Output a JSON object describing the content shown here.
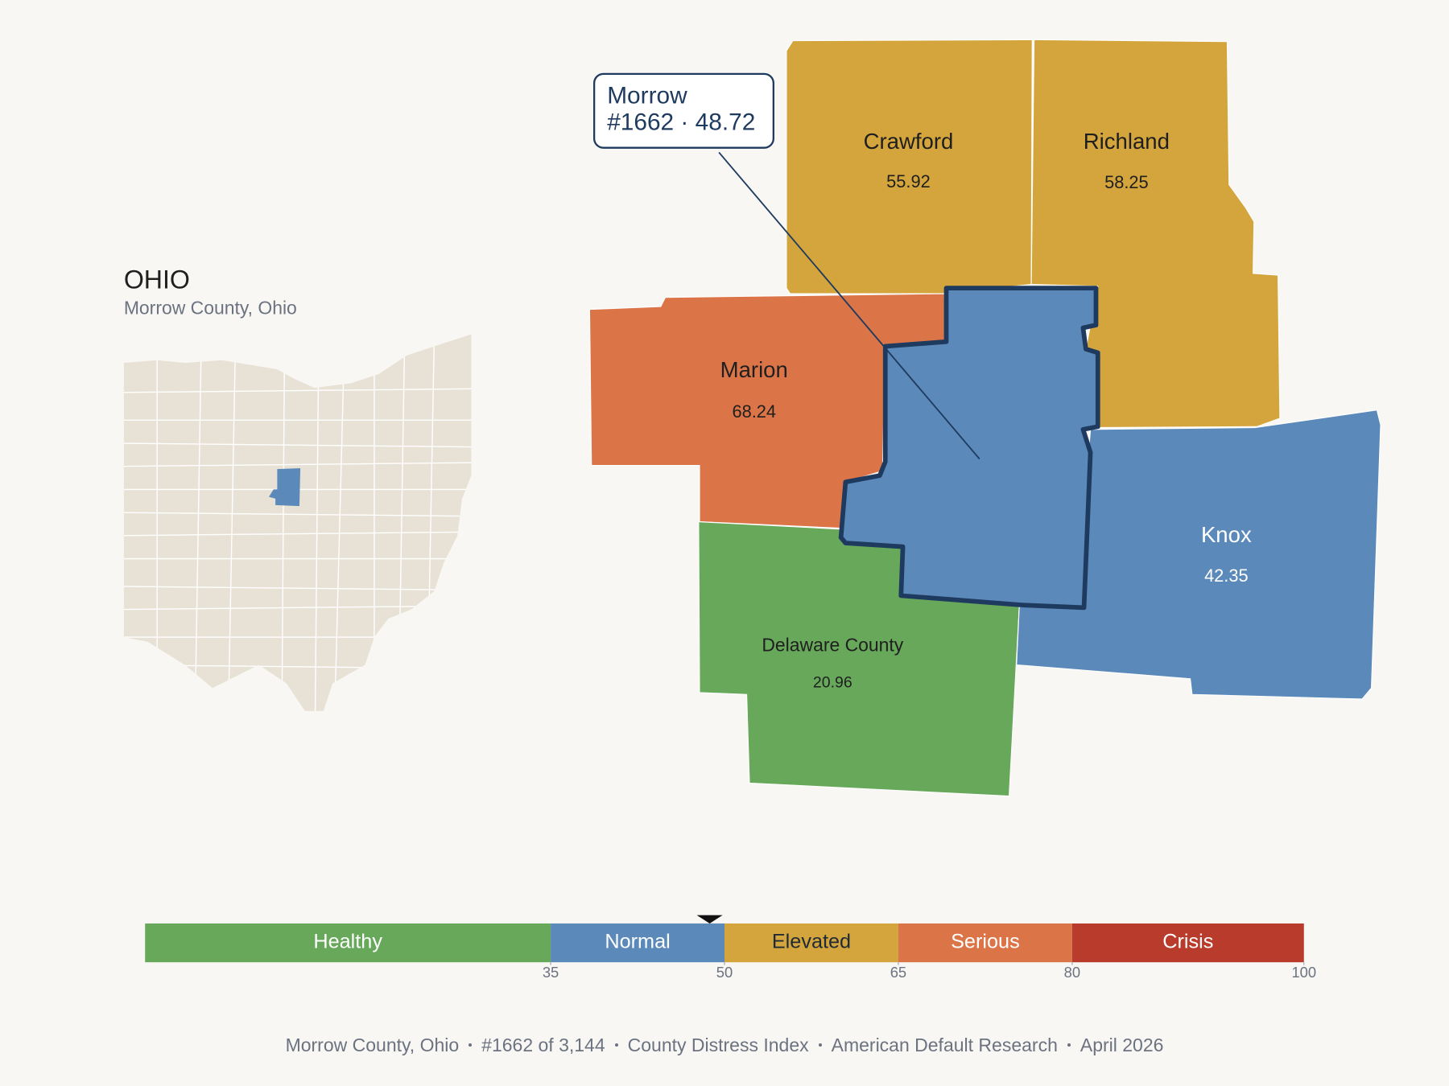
{
  "inset": {
    "title": "OHIO",
    "subtitle": "Morrow County, Ohio"
  },
  "callout": {
    "title": "Morrow",
    "detail": "#1662 · 48.72",
    "score": 48.72
  },
  "counties": [
    {
      "name": "Crawford",
      "value": 55.92
    },
    {
      "name": "Richland",
      "value": 58.25
    },
    {
      "name": "Marion",
      "value": 68.24
    },
    {
      "name": "Delaware County",
      "value": 20.96
    },
    {
      "name": "Knox",
      "value": 42.35
    }
  ],
  "scale": {
    "xlim": [
      0,
      100
    ],
    "xticks": [
      35,
      50,
      65,
      80,
      100
    ],
    "bands": [
      {
        "name": "Healthy",
        "color": "#67a85a",
        "text_color": "#ffffff"
      },
      {
        "name": "Normal",
        "color": "#5b8aba",
        "text_color": "#ffffff"
      },
      {
        "name": "Elevated",
        "color": "#d4a53c",
        "text_color": "#1f2a37"
      },
      {
        "name": "Serious",
        "color": "#db7548",
        "text_color": "#ffffff"
      },
      {
        "name": "Crisis",
        "color": "#b93b2b",
        "text_color": "#ffffff"
      }
    ]
  },
  "footer": {
    "items": [
      "Morrow County, Ohio",
      "#1662 of 3,144",
      "County Distress Index",
      "American Default Research",
      "April 2026"
    ]
  }
}
